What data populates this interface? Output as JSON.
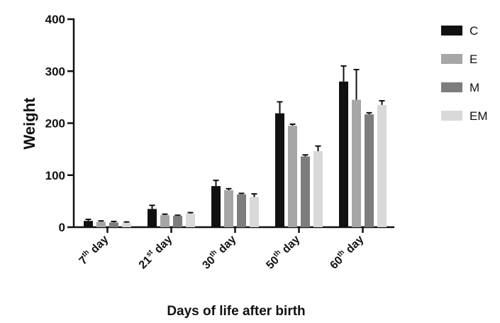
{
  "chart_data": {
    "type": "bar",
    "title": "",
    "xlabel": "Days of life after birth",
    "ylabel": "Weight",
    "ylim": [
      0,
      400
    ],
    "yticks": [
      "0",
      "100",
      "200",
      "300",
      "400"
    ],
    "categories": [
      {
        "num": "7",
        "sup": "th",
        "word": "day"
      },
      {
        "num": "21",
        "sup": "st",
        "word": "day"
      },
      {
        "num": "30",
        "sup": "th",
        "word": "day"
      },
      {
        "num": "50",
        "sup": "th",
        "word": "day"
      },
      {
        "num": "60",
        "sup": "th",
        "word": "day"
      }
    ],
    "series": [
      {
        "name": "C",
        "color": "#111111",
        "values": [
          12,
          35,
          79,
          219,
          280
        ],
        "errors": [
          3,
          7,
          11,
          22,
          30
        ]
      },
      {
        "name": "E",
        "color": "#a6a6a6",
        "values": [
          10,
          23,
          71,
          195,
          245
        ],
        "errors": [
          2,
          2,
          3,
          3,
          58
        ]
      },
      {
        "name": "M",
        "color": "#7d7d7d",
        "values": [
          9,
          22,
          63,
          136,
          217
        ],
        "errors": [
          2,
          1,
          2,
          3,
          3
        ]
      },
      {
        "name": "EM",
        "color": "#d9d9d9",
        "values": [
          8,
          26,
          58,
          146,
          235
        ],
        "errors": [
          2,
          2,
          6,
          10,
          8
        ]
      }
    ],
    "legend_position": "right",
    "grid": false
  }
}
